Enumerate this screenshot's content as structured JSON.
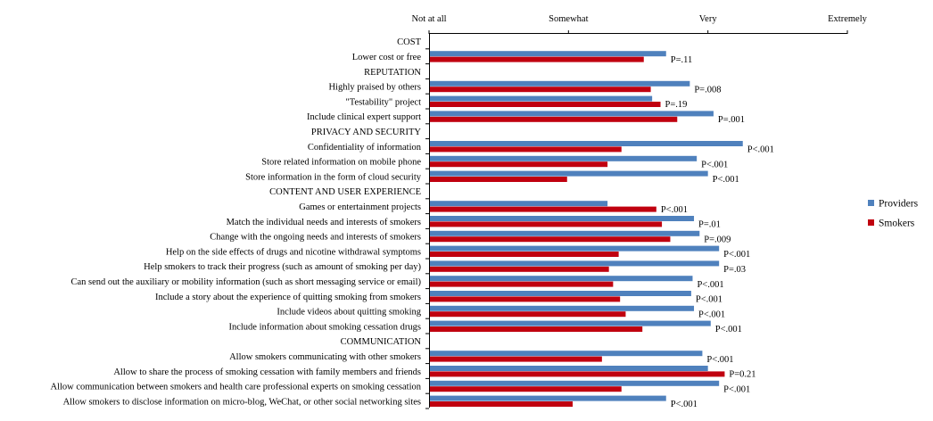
{
  "chart_data": {
    "type": "bar",
    "orientation": "horizontal",
    "x_scale": {
      "min": 1,
      "max": 4
    },
    "x_ticks": [
      {
        "value": 1,
        "label": "Not at all"
      },
      {
        "value": 2,
        "label": "Somewhat"
      },
      {
        "value": 3,
        "label": "Very"
      },
      {
        "value": 4,
        "label": "Extremely"
      }
    ],
    "legend_position": "right",
    "series": [
      {
        "name": "Providers",
        "color": "#4f81bd"
      },
      {
        "name": "Smokers",
        "color": "#c0000f"
      }
    ],
    "rows": [
      {
        "kind": "header",
        "label": "COST"
      },
      {
        "kind": "item",
        "label": "Lower cost or free",
        "providers": 2.7,
        "smokers": 2.54,
        "p": "P=.11"
      },
      {
        "kind": "header",
        "label": "REPUTATION"
      },
      {
        "kind": "item",
        "label": "Highly praised by others",
        "providers": 2.87,
        "smokers": 2.59,
        "p": "P=.008"
      },
      {
        "kind": "item",
        "label": "\"Testability\" project",
        "providers": 2.6,
        "smokers": 2.66,
        "p": "P=.19"
      },
      {
        "kind": "item",
        "label": "Include clinical expert support",
        "providers": 3.04,
        "smokers": 2.78,
        "p": "P=.001"
      },
      {
        "kind": "header",
        "label": "PRIVACY AND SECURITY"
      },
      {
        "kind": "item",
        "label": "Confidentiality of information",
        "providers": 3.25,
        "smokers": 2.38,
        "p": "P<.001"
      },
      {
        "kind": "item",
        "label": "Store related information on mobile phone",
        "providers": 2.92,
        "smokers": 2.28,
        "p": "P<.001"
      },
      {
        "kind": "item",
        "label": "Store information in the form of cloud security",
        "providers": 3.0,
        "smokers": 1.99,
        "p": "P<.001"
      },
      {
        "kind": "header",
        "label": "CONTENT AND USER EXPERIENCE"
      },
      {
        "kind": "item",
        "label": "Games or entertainment projects",
        "providers": 2.28,
        "smokers": 2.63,
        "p": "P<.001"
      },
      {
        "kind": "item",
        "label": "Match the individual needs and interests of smokers",
        "providers": 2.9,
        "smokers": 2.67,
        "p": "P=.01"
      },
      {
        "kind": "item",
        "label": "Change with the ongoing needs and interests of smokers",
        "providers": 2.94,
        "smokers": 2.73,
        "p": "P=.009"
      },
      {
        "kind": "item",
        "label": "Help on the side effects of drugs and nicotine withdrawal symptoms",
        "providers": 3.08,
        "smokers": 2.36,
        "p": "P<.001"
      },
      {
        "kind": "item",
        "label": "Help smokers to track their progress (such as amount of smoking per day)",
        "providers": 3.08,
        "smokers": 2.29,
        "p": "P=.03"
      },
      {
        "kind": "item",
        "label": "Can send out the auxiliary or mobility information (such as short messaging service or email)",
        "providers": 2.89,
        "smokers": 2.32,
        "p": "P<.001"
      },
      {
        "kind": "item",
        "label": "Include a story about the experience of quitting smoking from smokers",
        "providers": 2.88,
        "smokers": 2.37,
        "p": "P<.001"
      },
      {
        "kind": "item",
        "label": "Include videos about quitting smoking",
        "providers": 2.9,
        "smokers": 2.41,
        "p": "P<.001"
      },
      {
        "kind": "item",
        "label": "Include information about smoking cessation drugs",
        "providers": 3.02,
        "smokers": 2.53,
        "p": "P<.001"
      },
      {
        "kind": "header",
        "label": "COMMUNICATION"
      },
      {
        "kind": "item",
        "label": "Allow smokers communicating with other smokers",
        "providers": 2.96,
        "smokers": 2.24,
        "p": "P<.001"
      },
      {
        "kind": "item",
        "label": "Allow to share the process of smoking cessation with family members and friends",
        "providers": 3.0,
        "smokers": 3.12,
        "p": "P=0.21"
      },
      {
        "kind": "item",
        "label": "Allow communication between smokers and health care professional experts on smoking cessation",
        "providers": 3.08,
        "smokers": 2.38,
        "p": "P<.001"
      },
      {
        "kind": "item",
        "label": "Allow smokers to disclose information on micro-blog, WeChat, or other social networking sites",
        "providers": 2.7,
        "smokers": 2.03,
        "p": "P<.001"
      }
    ]
  }
}
